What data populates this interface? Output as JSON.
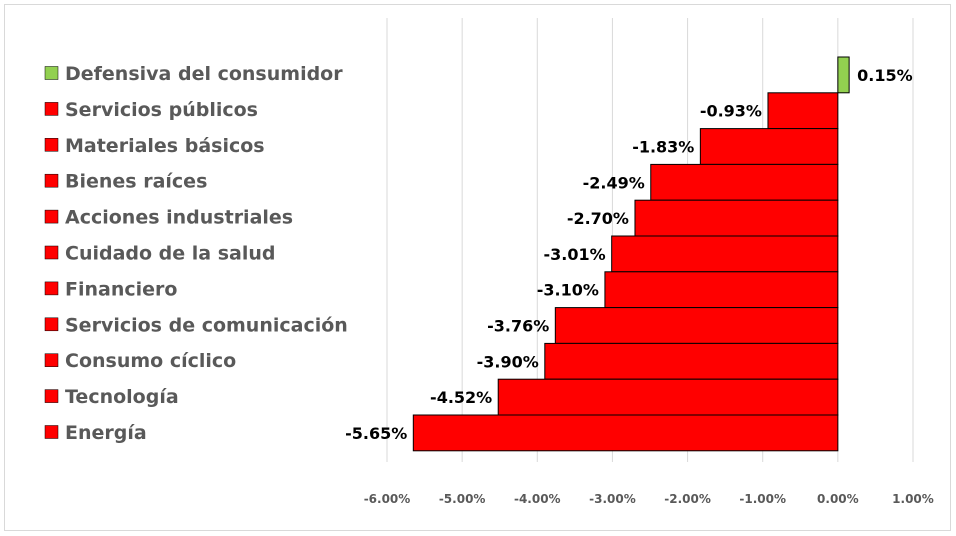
{
  "chart_data": {
    "type": "bar",
    "orientation": "horizontal",
    "title": "",
    "xlabel": "",
    "ylabel": "",
    "xlim": [
      -0.06,
      0.01
    ],
    "tick_values": [
      -0.06,
      -0.05,
      -0.04,
      -0.03,
      -0.02,
      -0.01,
      0.0,
      0.01
    ],
    "tick_labels": [
      "-6.00%",
      "-5.00%",
      "-4.00%",
      "-3.00%",
      "-2.00%",
      "-1.00%",
      "0.00%",
      "1.00%"
    ],
    "grid": "vertical",
    "legend_position": "left",
    "colors": {
      "positive": "#92d050",
      "negative": "#ff0000",
      "bar_outline": "#000000",
      "gridline": "#d9d9d9",
      "legend_text": "#595959",
      "tick_text": "#595959",
      "data_label_text": "#000000",
      "frame": "#d9d9d9"
    },
    "categories": [
      "Defensiva del consumidor",
      "Servicios públicos",
      "Materiales básicos",
      "Bienes raíces",
      "Acciones industriales",
      "Cuidado de la salud",
      "Financiero",
      "Servicios de comunicación",
      "Consumo cíclico",
      "Tecnología",
      "Energía"
    ],
    "values": [
      0.0015,
      -0.0093,
      -0.0183,
      -0.0249,
      -0.027,
      -0.0301,
      -0.031,
      -0.0376,
      -0.039,
      -0.0452,
      -0.0565
    ],
    "data_labels": [
      "0.15%",
      "-0.93%",
      "-1.83%",
      "-2.49%",
      "-2.70%",
      "-3.01%",
      "-3.10%",
      "-3.76%",
      "-3.90%",
      "-4.52%",
      "-5.65%"
    ]
  }
}
